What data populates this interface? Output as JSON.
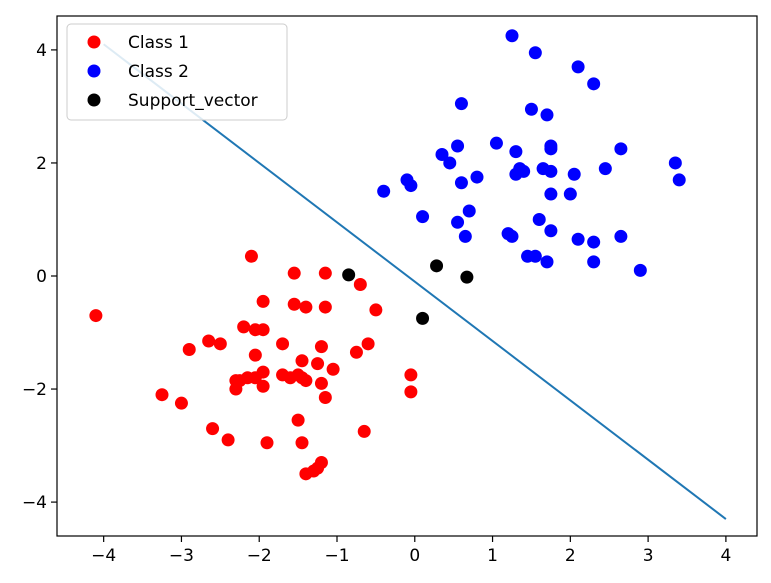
{
  "chart_data": {
    "type": "scatter",
    "xlim": [
      -4.6,
      4.4
    ],
    "ylim": [
      -4.6,
      4.6
    ],
    "x_ticks": [
      -4,
      -3,
      -2,
      -1,
      0,
      1,
      2,
      3,
      4
    ],
    "x_tick_labels": [
      "−4",
      "−3",
      "−2",
      "−1",
      "0",
      "1",
      "2",
      "3",
      "4"
    ],
    "y_ticks": [
      -4,
      -2,
      0,
      2,
      4
    ],
    "y_tick_labels": [
      "−4",
      "−2",
      "0",
      "2",
      "4"
    ],
    "grid": false,
    "legend_position": "top-left",
    "series": [
      {
        "name": "Class 1",
        "color": "#ff0000",
        "points": [
          [
            -4.1,
            -0.7
          ],
          [
            -2.1,
            0.35
          ],
          [
            -1.55,
            0.05
          ],
          [
            -1.15,
            0.05
          ],
          [
            -0.7,
            -0.15
          ],
          [
            -1.95,
            -0.45
          ],
          [
            -1.55,
            -0.5
          ],
          [
            -1.4,
            -0.55
          ],
          [
            -1.15,
            -0.55
          ],
          [
            -0.5,
            -0.6
          ],
          [
            -2.2,
            -0.9
          ],
          [
            -2.05,
            -0.95
          ],
          [
            -1.95,
            -0.95
          ],
          [
            -2.65,
            -1.15
          ],
          [
            -2.5,
            -1.2
          ],
          [
            -1.7,
            -1.2
          ],
          [
            -1.2,
            -1.25
          ],
          [
            -2.9,
            -1.3
          ],
          [
            -0.6,
            -1.2
          ],
          [
            -0.75,
            -1.35
          ],
          [
            -2.05,
            -1.4
          ],
          [
            -1.45,
            -1.5
          ],
          [
            -1.25,
            -1.55
          ],
          [
            -1.05,
            -1.65
          ],
          [
            -2.25,
            -1.85
          ],
          [
            -2.15,
            -1.8
          ],
          [
            -2.05,
            -1.8
          ],
          [
            -1.95,
            -1.7
          ],
          [
            -1.7,
            -1.75
          ],
          [
            -1.6,
            -1.8
          ],
          [
            -1.5,
            -1.75
          ],
          [
            -1.45,
            -1.8
          ],
          [
            -1.4,
            -1.85
          ],
          [
            -2.3,
            -1.85
          ],
          [
            -0.05,
            -1.75
          ],
          [
            -1.2,
            -1.9
          ],
          [
            -2.3,
            -2.0
          ],
          [
            -1.95,
            -1.95
          ],
          [
            -0.05,
            -2.05
          ],
          [
            -3.25,
            -2.1
          ],
          [
            -3.0,
            -2.25
          ],
          [
            -1.15,
            -2.15
          ],
          [
            -1.5,
            -2.55
          ],
          [
            -2.6,
            -2.7
          ],
          [
            -0.65,
            -2.75
          ],
          [
            -2.4,
            -2.9
          ],
          [
            -1.9,
            -2.95
          ],
          [
            -1.45,
            -2.95
          ],
          [
            -1.2,
            -3.3
          ],
          [
            -1.4,
            -3.5
          ],
          [
            -1.3,
            -3.45
          ],
          [
            -1.25,
            -3.4
          ]
        ]
      },
      {
        "name": "Class 2",
        "color": "#0000ff",
        "points": [
          [
            1.25,
            4.25
          ],
          [
            1.55,
            3.95
          ],
          [
            2.1,
            3.7
          ],
          [
            2.3,
            3.4
          ],
          [
            0.6,
            3.05
          ],
          [
            1.5,
            2.95
          ],
          [
            1.7,
            2.85
          ],
          [
            1.05,
            2.35
          ],
          [
            1.75,
            2.3
          ],
          [
            1.3,
            2.2
          ],
          [
            0.55,
            2.3
          ],
          [
            0.35,
            2.15
          ],
          [
            2.65,
            2.25
          ],
          [
            1.75,
            2.25
          ],
          [
            0.45,
            2.0
          ],
          [
            3.35,
            2.0
          ],
          [
            2.45,
            1.9
          ],
          [
            1.35,
            1.9
          ],
          [
            1.65,
            1.9
          ],
          [
            1.75,
            1.85
          ],
          [
            1.3,
            1.8
          ],
          [
            1.4,
            1.85
          ],
          [
            2.05,
            1.8
          ],
          [
            0.8,
            1.75
          ],
          [
            0.6,
            1.65
          ],
          [
            -0.1,
            1.7
          ],
          [
            -0.05,
            1.6
          ],
          [
            3.4,
            1.7
          ],
          [
            -0.4,
            1.5
          ],
          [
            1.75,
            1.45
          ],
          [
            2.0,
            1.45
          ],
          [
            0.7,
            1.15
          ],
          [
            0.1,
            1.05
          ],
          [
            1.6,
            1.0
          ],
          [
            0.55,
            0.95
          ],
          [
            1.25,
            0.7
          ],
          [
            1.2,
            0.75
          ],
          [
            0.65,
            0.7
          ],
          [
            2.1,
            0.65
          ],
          [
            2.3,
            0.6
          ],
          [
            2.65,
            0.7
          ],
          [
            1.75,
            0.8
          ],
          [
            1.45,
            0.35
          ],
          [
            1.55,
            0.35
          ],
          [
            1.7,
            0.25
          ],
          [
            2.3,
            0.25
          ],
          [
            2.9,
            0.1
          ]
        ]
      },
      {
        "name": "Support_vector",
        "color": "#000000",
        "points": [
          [
            -0.85,
            0.02
          ],
          [
            0.28,
            0.18
          ],
          [
            0.67,
            -0.02
          ],
          [
            0.1,
            -0.75
          ]
        ]
      }
    ],
    "decision_boundary": {
      "color": "#1f77b4",
      "x": [
        -4,
        4
      ],
      "y": [
        4.1,
        -4.3
      ]
    }
  }
}
